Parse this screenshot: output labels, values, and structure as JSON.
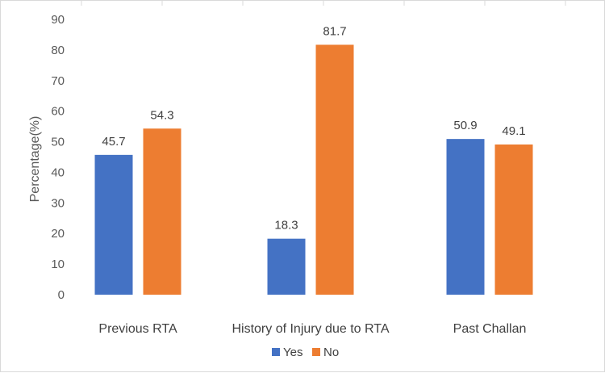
{
  "chart_data": {
    "type": "bar",
    "categories": [
      "Previous RTA",
      "History of Injury due to RTA",
      "Past Challan"
    ],
    "series": [
      {
        "name": "Yes",
        "values": [
          45.7,
          18.3,
          50.9
        ],
        "color": "#4472c4"
      },
      {
        "name": "No",
        "values": [
          54.3,
          81.7,
          49.1
        ],
        "color": "#ed7d31"
      }
    ],
    "xlabel": "",
    "ylabel": "Percentage(%)",
    "ylim": [
      0,
      90
    ],
    "yticks": [
      0,
      10,
      20,
      30,
      40,
      50,
      60,
      70,
      80,
      90
    ],
    "data_labels": true,
    "grid": false,
    "legend_position": "bottom"
  }
}
